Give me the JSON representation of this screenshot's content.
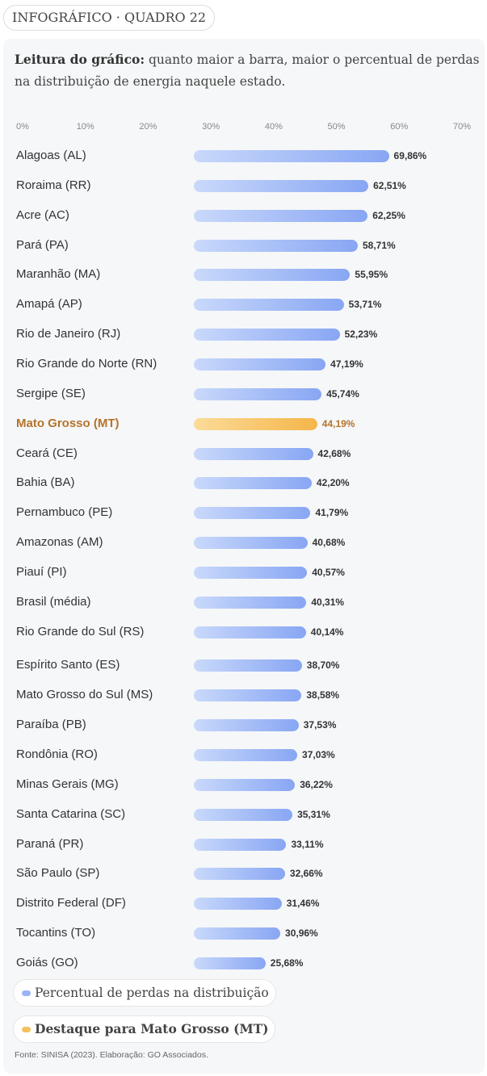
{
  "tag": "INFOGRÁFICO · QUADRO 22",
  "lead": {
    "bold": "Leitura do gráfico:",
    "text": " quanto maior a barra, maior o percentual de perdas na distribuição de energia naquele estado."
  },
  "chart_data": {
    "type": "bar",
    "orientation": "horizontal",
    "xlim": [
      0,
      70
    ],
    "ticks": [
      "0%",
      "10%",
      "20%",
      "30%",
      "40%",
      "50%",
      "60%",
      "70%"
    ],
    "highlight": "Mato Grosso (MT)",
    "categories": [
      "Alagoas (AL)",
      "Roraima (RR)",
      "Acre (AC)",
      "Pará (PA)",
      "Maranhão (MA)",
      "Amapá (AP)",
      "Rio de Janeiro (RJ)",
      "Rio Grande do Norte (RN)",
      "Sergipe (SE)",
      "Mato Grosso (MT)",
      "Ceará (CE)",
      "Bahia (BA)",
      "Pernambuco (PE)",
      "Amazonas (AM)",
      "Piauí (PI)",
      "Brasil (média)",
      "Rio Grande do Sul (RS)",
      "Espírito Santo (ES)",
      "Mato Grosso do Sul (MS)",
      "Paraíba (PB)",
      "Rondônia (RO)",
      "Minas Gerais (MG)",
      "Santa Catarina (SC)",
      "Paraná (PR)",
      "São Paulo (SP)",
      "Distrito Federal (DF)",
      "Tocantins (TO)",
      "Goiás (GO)"
    ],
    "values": [
      69.86,
      62.51,
      62.25,
      58.71,
      55.95,
      53.71,
      52.23,
      47.19,
      45.74,
      44.19,
      42.68,
      42.2,
      41.79,
      40.68,
      40.57,
      40.31,
      40.14,
      38.7,
      38.58,
      37.53,
      37.03,
      36.22,
      35.31,
      33.11,
      32.66,
      31.46,
      30.96,
      25.68
    ],
    "value_labels": [
      "69,86%",
      "62,51%",
      "62,25%",
      "58,71%",
      "55,95%",
      "53,71%",
      "52,23%",
      "47,19%",
      "45,74%",
      "44,19%",
      "42,68%",
      "42,20%",
      "41,79%",
      "40,68%",
      "40,57%",
      "40,31%",
      "40,14%",
      "38,70%",
      "38,58%",
      "37,53%",
      "37,03%",
      "36,22%",
      "35,31%",
      "33,11%",
      "32,66%",
      "31,46%",
      "30,96%",
      "25,68%"
    ],
    "legend": [
      {
        "label": "Percentual de perdas na distribuição",
        "color": "#9ab3f5"
      },
      {
        "label": "Destaque para Mato Grosso (MT)",
        "color": "#f5c060"
      }
    ]
  },
  "footer": "Fonte: SINISA (2023). Elaboração: GO Associados."
}
